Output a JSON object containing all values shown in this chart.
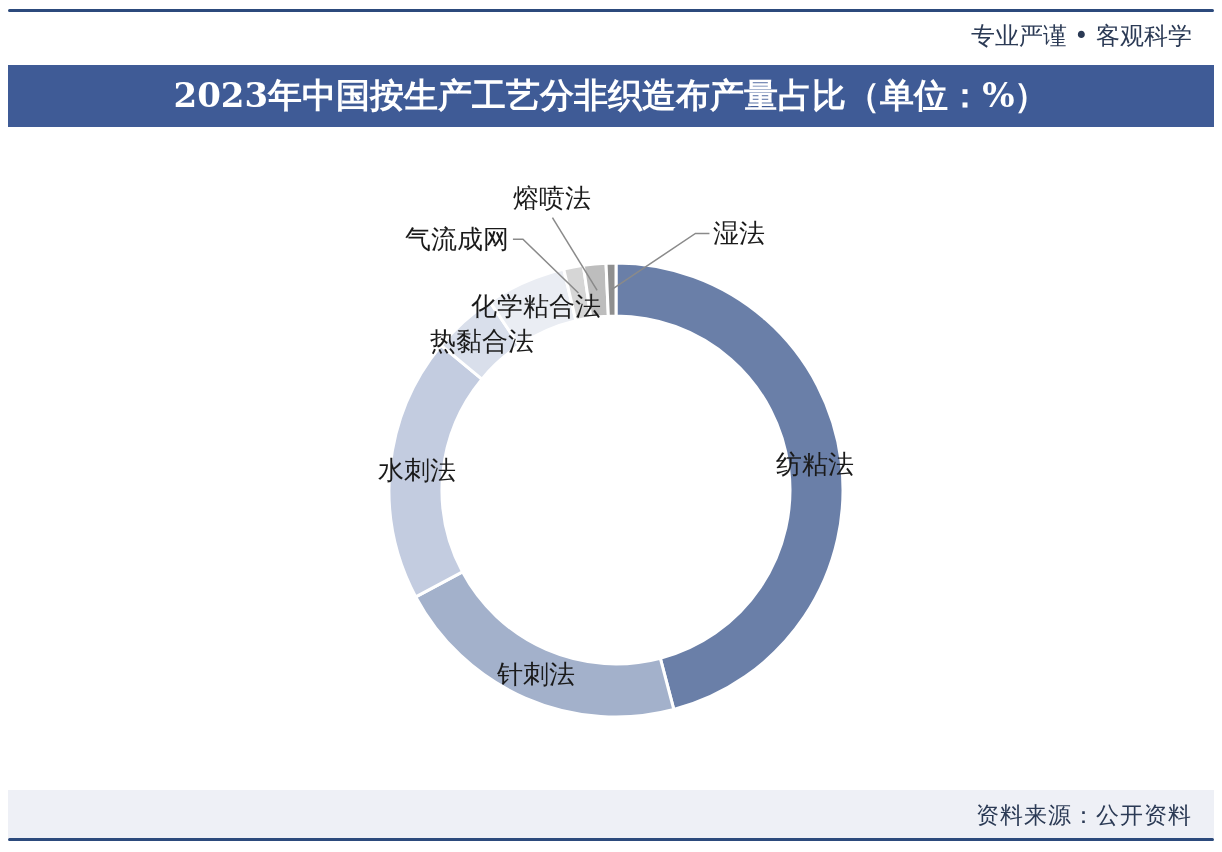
{
  "chart_data": {
    "type": "donut",
    "title": "2023年中国按生产工艺分非织造布产量占比（单位：%）",
    "categories": [
      "纺粘法",
      "针刺法",
      "水刺法",
      "热黏合法",
      "化学粘合法",
      "气流成网",
      "熔喷法",
      "湿法"
    ],
    "values": [
      45.9,
      21.3,
      18.8,
      4.6,
      5.7,
      1.4,
      1.6,
      0.7
    ],
    "colors": [
      "#6a7fa8",
      "#a3b1cb",
      "#c3cce0",
      "#d9dfeb",
      "#eaedf3",
      "#d6d6d6",
      "#bdbdbd",
      "#8f8f8f"
    ],
    "annotations": [
      "专业严谨 • 客观科学",
      "资料来源：公开资料"
    ]
  }
}
